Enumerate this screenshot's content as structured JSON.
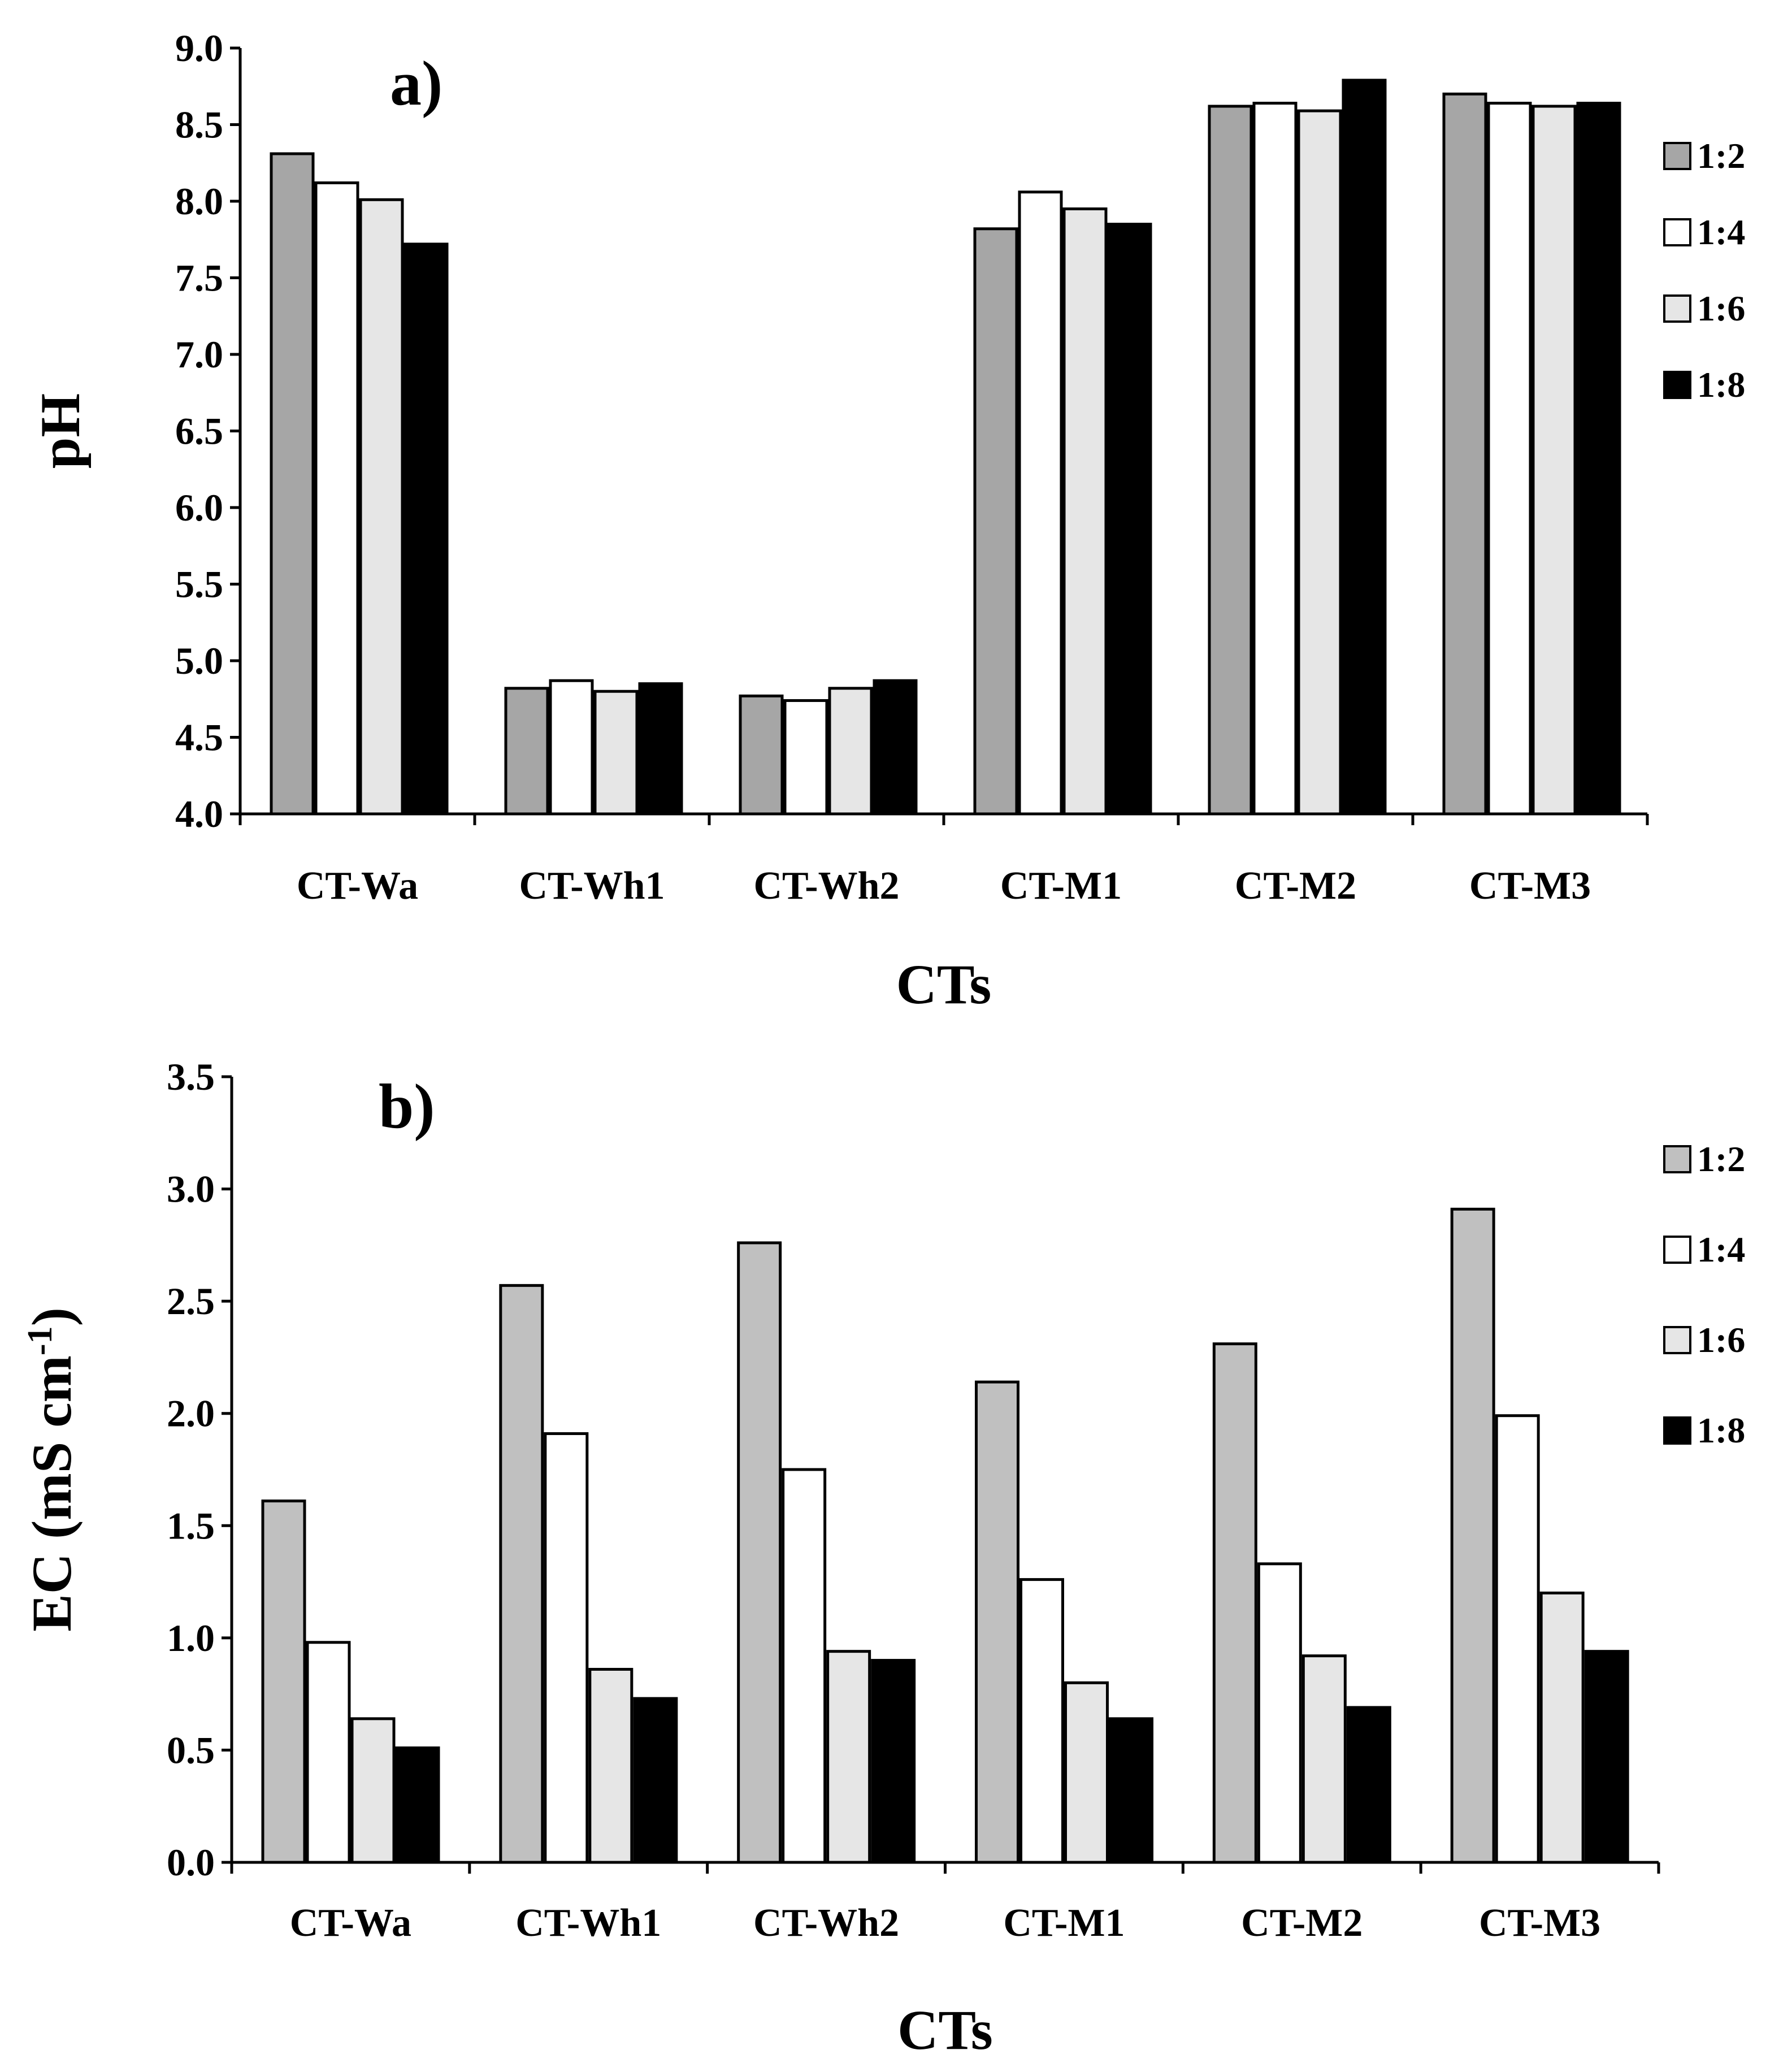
{
  "chart_data": [
    {
      "type": "bar",
      "panel_label": "a)",
      "title": "",
      "xlabel": "CTs",
      "ylabel": "pH",
      "ylim": [
        4.0,
        9.0
      ],
      "ytick_step": 0.5,
      "ytick_labels": [
        "4.0",
        "4.5",
        "5.0",
        "5.5",
        "6.0",
        "6.5",
        "7.0",
        "7.5",
        "8.0",
        "8.5",
        "9.0"
      ],
      "categories": [
        "CT-Wa",
        "CT-Wh1",
        "CT-Wh2",
        "CT-M1",
        "CT-M2",
        "CT-M3"
      ],
      "legend_position": "right",
      "series": [
        {
          "name": "1:2",
          "color": "#a6a6a6",
          "values": [
            8.31,
            4.82,
            4.77,
            7.82,
            8.62,
            8.7
          ]
        },
        {
          "name": "1:4",
          "color": "#ffffff",
          "values": [
            8.12,
            4.87,
            4.74,
            8.06,
            8.64,
            8.64
          ]
        },
        {
          "name": "1:6",
          "color": "#e6e6e6",
          "values": [
            8.01,
            4.8,
            4.82,
            7.95,
            8.59,
            8.62
          ]
        },
        {
          "name": "1:8",
          "color": "#000000",
          "values": [
            7.72,
            4.85,
            4.87,
            7.85,
            8.79,
            8.64
          ]
        }
      ]
    },
    {
      "type": "bar",
      "panel_label": "b)",
      "title": "",
      "xlabel": "CTs",
      "ylabel": "EC (mS cm",
      "ylabel_sup": "-1",
      "ylabel_end": ")",
      "ylim": [
        0.0,
        3.5
      ],
      "ytick_step": 0.5,
      "ytick_labels": [
        "0.0",
        "0.5",
        "1.0",
        "1.5",
        "2.0",
        "2.5",
        "3.0",
        "3.5"
      ],
      "categories": [
        "CT-Wa",
        "CT-Wh1",
        "CT-Wh2",
        "CT-M1",
        "CT-M2",
        "CT-M3"
      ],
      "legend_position": "right",
      "series": [
        {
          "name": "1:2",
          "color": "#c0c0c0",
          "values": [
            1.61,
            2.57,
            2.76,
            2.14,
            2.31,
            2.91
          ]
        },
        {
          "name": "1:4",
          "color": "#ffffff",
          "values": [
            0.98,
            1.91,
            1.75,
            1.26,
            1.33,
            1.99
          ]
        },
        {
          "name": "1:6",
          "color": "#e6e6e6",
          "values": [
            0.64,
            0.86,
            0.94,
            0.8,
            0.92,
            1.2
          ]
        },
        {
          "name": "1:8",
          "color": "#000000",
          "values": [
            0.51,
            0.73,
            0.9,
            0.64,
            0.69,
            0.94
          ]
        }
      ]
    }
  ]
}
